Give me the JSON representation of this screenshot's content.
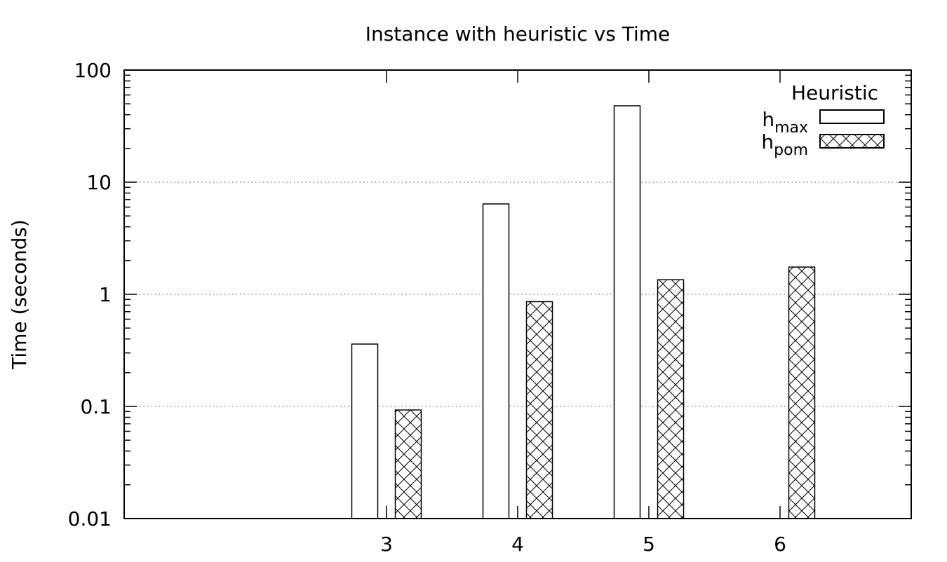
{
  "chart_data": {
    "type": "bar",
    "title": "Instance with heuristic vs Time",
    "xlabel": "",
    "ylabel": "Time (seconds)",
    "yscale": "log",
    "ylim": [
      0.01,
      100
    ],
    "grid": "horizontal dotted at major ticks",
    "categories": [
      "3",
      "4",
      "5",
      "6"
    ],
    "y_ticks": [
      "0.01",
      "0.1",
      "1",
      "10",
      "100"
    ],
    "legend": {
      "title": "Heuristic",
      "placement": "top-right"
    },
    "series": [
      {
        "name": "h_max",
        "label_base": "h",
        "label_sub": "max",
        "fill": "none",
        "values": [
          0.36,
          6.4,
          48,
          null
        ]
      },
      {
        "name": "h_pom",
        "label_base": "h",
        "label_sub": "pom",
        "fill": "crosshatch",
        "values": [
          0.093,
          0.86,
          1.35,
          1.75
        ]
      }
    ]
  }
}
